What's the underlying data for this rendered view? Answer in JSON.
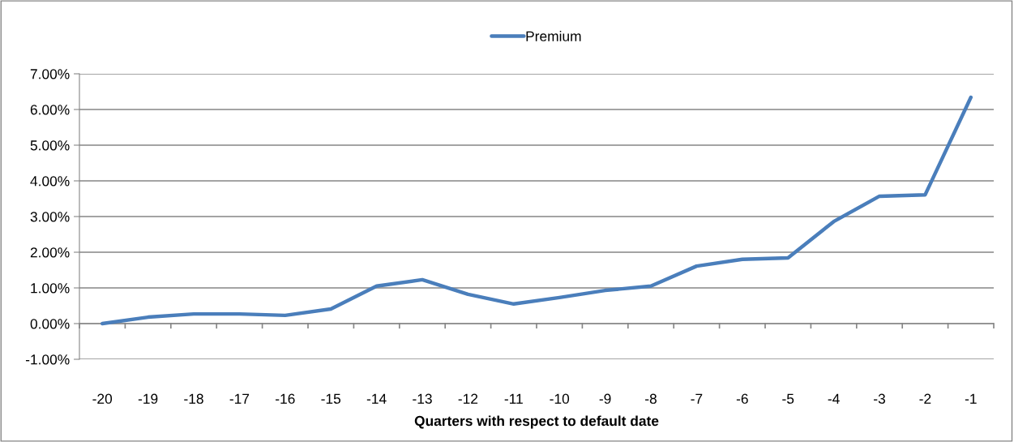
{
  "chart_data": {
    "type": "line",
    "xlabel": "Quarters with respect to default date",
    "categories": [
      "-20",
      "-19",
      "-18",
      "-17",
      "-16",
      "-15",
      "-14",
      "-13",
      "-12",
      "-11",
      "-10",
      "-9",
      "-8",
      "-7",
      "-6",
      "-5",
      "-4",
      "-3",
      "-2",
      "-1"
    ],
    "series": [
      {
        "name": "Premium",
        "color": "#4a7ebb",
        "values": [
          0.0,
          0.18,
          0.27,
          0.27,
          0.23,
          0.41,
          1.05,
          1.23,
          0.82,
          0.55,
          0.73,
          0.93,
          1.05,
          1.61,
          1.8,
          1.84,
          2.86,
          3.57,
          3.61,
          6.34
        ]
      }
    ],
    "ylim": [
      -1,
      7
    ],
    "yticks": [
      {
        "value": -1,
        "label": "-1.00%"
      },
      {
        "value": 0,
        "label": "0.00%"
      },
      {
        "value": 1,
        "label": "1.00%"
      },
      {
        "value": 2,
        "label": "2.00%"
      },
      {
        "value": 3,
        "label": "3.00%"
      },
      {
        "value": 4,
        "label": "4.00%"
      },
      {
        "value": 5,
        "label": "5.00%"
      },
      {
        "value": 6,
        "label": "6.00%"
      },
      {
        "value": 7,
        "label": "7.00%"
      }
    ],
    "grid": "y",
    "legend": "top",
    "marker": "none",
    "line_style": "solid"
  }
}
